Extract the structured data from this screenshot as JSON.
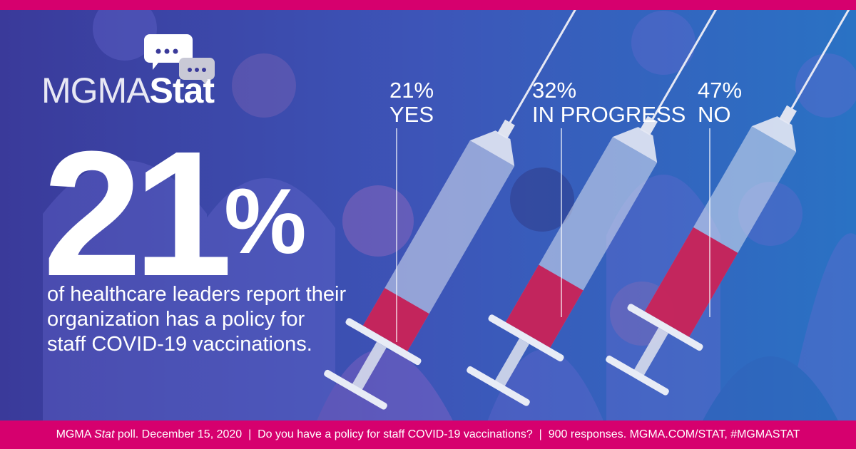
{
  "logo": {
    "part1": "MGMA",
    "part2": "Stat"
  },
  "headline": {
    "value": "21",
    "unit": "%",
    "description": "of healthcare leaders report their organization has a policy for staff COVID-19 vaccinations."
  },
  "colors": {
    "accent": "#d6006e",
    "fill": "#c8174f",
    "background_left": "#3a3a9a",
    "background_right": "#2a72c4"
  },
  "chart_data": {
    "type": "bar",
    "style": "syringe fill level",
    "categories": [
      "YES",
      "IN PROGRESS",
      "NO"
    ],
    "values": [
      21,
      32,
      47
    ],
    "labels": [
      "21%",
      "32%",
      "47%"
    ],
    "ylim": [
      0,
      100
    ]
  },
  "footer": {
    "part1": "MGMA ",
    "italic": "Stat",
    "part2": " poll. December 15, 2020  |  Do you have a policy for staff COVID-19 vaccinations?  |  900 responses. MGMA.COM/STAT, #MGMASTAT"
  }
}
